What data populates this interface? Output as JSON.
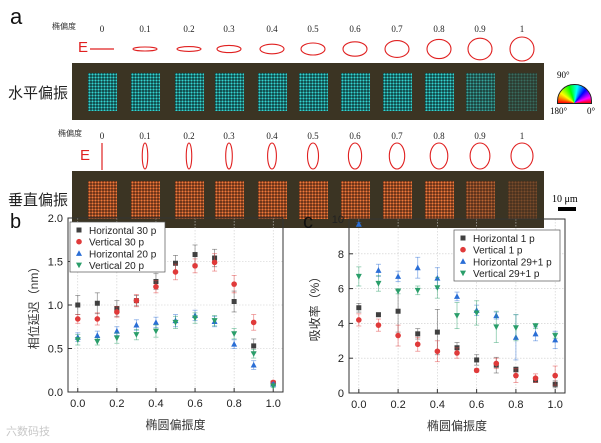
{
  "panel_a": {
    "label": "a",
    "ellipticity_label": "椭偏度",
    "ellipticities": [
      "0",
      "0.1",
      "0.2",
      "0.3",
      "0.4",
      "0.5",
      "0.6",
      "0.7",
      "0.8",
      "0.9",
      "1"
    ],
    "field_label": "E",
    "row_horizontal": "水平偏振",
    "row_vertical": "垂直偏振",
    "colorwheel": {
      "top": "90°",
      "left": "180°",
      "right": "0°"
    },
    "scale_bar": "10 μm",
    "colors": {
      "horizontal_particles": "#35d4d0",
      "vertical_particles": "#f07a3a",
      "ellipse": "#e02020"
    }
  },
  "watermark": "六数码技",
  "chart_data": [
    {
      "panel_label": "b",
      "type": "scatter",
      "xlabel": "椭圆偏振度",
      "ylabel": "相位延迟（nm）",
      "xlim": [
        -0.05,
        1.05
      ],
      "ylim": [
        0,
        2.0
      ],
      "xticks": [
        "0.0",
        "0.2",
        "0.4",
        "0.6",
        "0.8",
        "1.0"
      ],
      "yticks": [
        "0.0",
        "0.5",
        "1.0",
        "1.5",
        "2.0"
      ],
      "grid": true,
      "legend": "top-left",
      "x": [
        0,
        0.1,
        0.2,
        0.3,
        0.4,
        0.5,
        0.6,
        0.7,
        0.8,
        0.9,
        1.0
      ],
      "series": [
        {
          "name": "Horizontal 30 p",
          "marker": "square",
          "color": "#404040",
          "values": [
            1.0,
            1.02,
            0.96,
            1.05,
            1.27,
            1.48,
            1.58,
            1.54,
            1.04,
            0.53,
            0.1
          ],
          "err": [
            0.11,
            0.12,
            0.09,
            0.06,
            0.09,
            0.09,
            0.11,
            0.1,
            0.12,
            0.08,
            0.02
          ]
        },
        {
          "name": "Vertical 30 p",
          "marker": "circle",
          "color": "#e03a3a",
          "values": [
            0.84,
            0.84,
            0.92,
            1.05,
            1.21,
            1.38,
            1.45,
            1.49,
            1.24,
            0.8,
            0.11
          ],
          "err": [
            0.05,
            0.07,
            0.06,
            0.07,
            0.07,
            0.09,
            0.08,
            0.1,
            0.1,
            0.09,
            0.02
          ]
        },
        {
          "name": "Horizontal 20 p",
          "marker": "triangle-up",
          "color": "#2a6ed6",
          "values": [
            0.63,
            0.65,
            0.7,
            0.77,
            0.8,
            0.82,
            0.88,
            0.81,
            0.55,
            0.31,
            0.09
          ],
          "err": [
            0.05,
            0.05,
            0.05,
            0.06,
            0.06,
            0.07,
            0.06,
            0.06,
            0.05,
            0.05,
            0.02
          ]
        },
        {
          "name": "Vertical 20 p",
          "marker": "triangle-down",
          "color": "#2a9e6a",
          "values": [
            0.6,
            0.58,
            0.62,
            0.66,
            0.7,
            0.8,
            0.85,
            0.82,
            0.67,
            0.44,
            0.07
          ],
          "err": [
            0.06,
            0.04,
            0.06,
            0.06,
            0.07,
            0.07,
            0.06,
            0.06,
            0.06,
            0.05,
            0.02
          ]
        }
      ]
    },
    {
      "panel_label": "c",
      "type": "scatter",
      "xlabel": "椭圆偏振度",
      "ylabel": "吸收率（%）",
      "xlim": [
        -0.05,
        1.05
      ],
      "ylim": [
        0,
        10
      ],
      "xticks": [
        "0.0",
        "0.2",
        "0.4",
        "0.6",
        "0.8",
        "1.0"
      ],
      "yticks": [
        "0",
        "2",
        "4",
        "6",
        "8",
        "10"
      ],
      "grid": true,
      "legend": "top-right",
      "x": [
        0,
        0.1,
        0.2,
        0.3,
        0.4,
        0.5,
        0.6,
        0.7,
        0.8,
        0.9,
        1.0
      ],
      "series": [
        {
          "name": "Horizontal 1 p",
          "marker": "square",
          "color": "#404040",
          "values": [
            4.9,
            4.5,
            4.7,
            3.4,
            3.5,
            2.6,
            1.9,
            1.6,
            1.35,
            0.75,
            0.5
          ],
          "err": [
            0.25,
            0.1,
            1.2,
            0.3,
            1.3,
            0.3,
            0.3,
            0.45,
            0.15,
            0.15,
            0.2
          ]
        },
        {
          "name": "Vertical 1 p",
          "marker": "circle",
          "color": "#e03a3a",
          "values": [
            4.2,
            3.9,
            3.3,
            2.8,
            2.4,
            2.3,
            1.3,
            1.7,
            1.0,
            0.85,
            1.0
          ],
          "err": [
            0.35,
            0.35,
            0.6,
            0.4,
            0.6,
            0.3,
            0.1,
            0.3,
            0.4,
            0.25,
            0.55
          ]
        },
        {
          "name": "Horizontal 29+1 p",
          "marker": "triangle-up",
          "color": "#2a6ed6",
          "values": [
            9.7,
            7.05,
            6.7,
            7.2,
            6.6,
            5.55,
            4.75,
            4.45,
            3.2,
            3.4,
            3.05
          ],
          "err": [
            0.1,
            0.35,
            0.3,
            0.6,
            0.6,
            0.25,
            0.3,
            0.2,
            1.3,
            0.4,
            0.5
          ]
        },
        {
          "name": "Vertical 29+1 p",
          "marker": "triangle-down",
          "color": "#2a9e6a",
          "values": [
            6.7,
            6.3,
            5.85,
            5.9,
            6.05,
            4.45,
            4.6,
            3.8,
            3.75,
            3.85,
            3.3
          ],
          "err": [
            0.55,
            0.45,
            0.15,
            0.25,
            0.6,
            0.75,
            0.7,
            0.9,
            0.75,
            0.15,
            0.15
          ]
        }
      ]
    }
  ]
}
